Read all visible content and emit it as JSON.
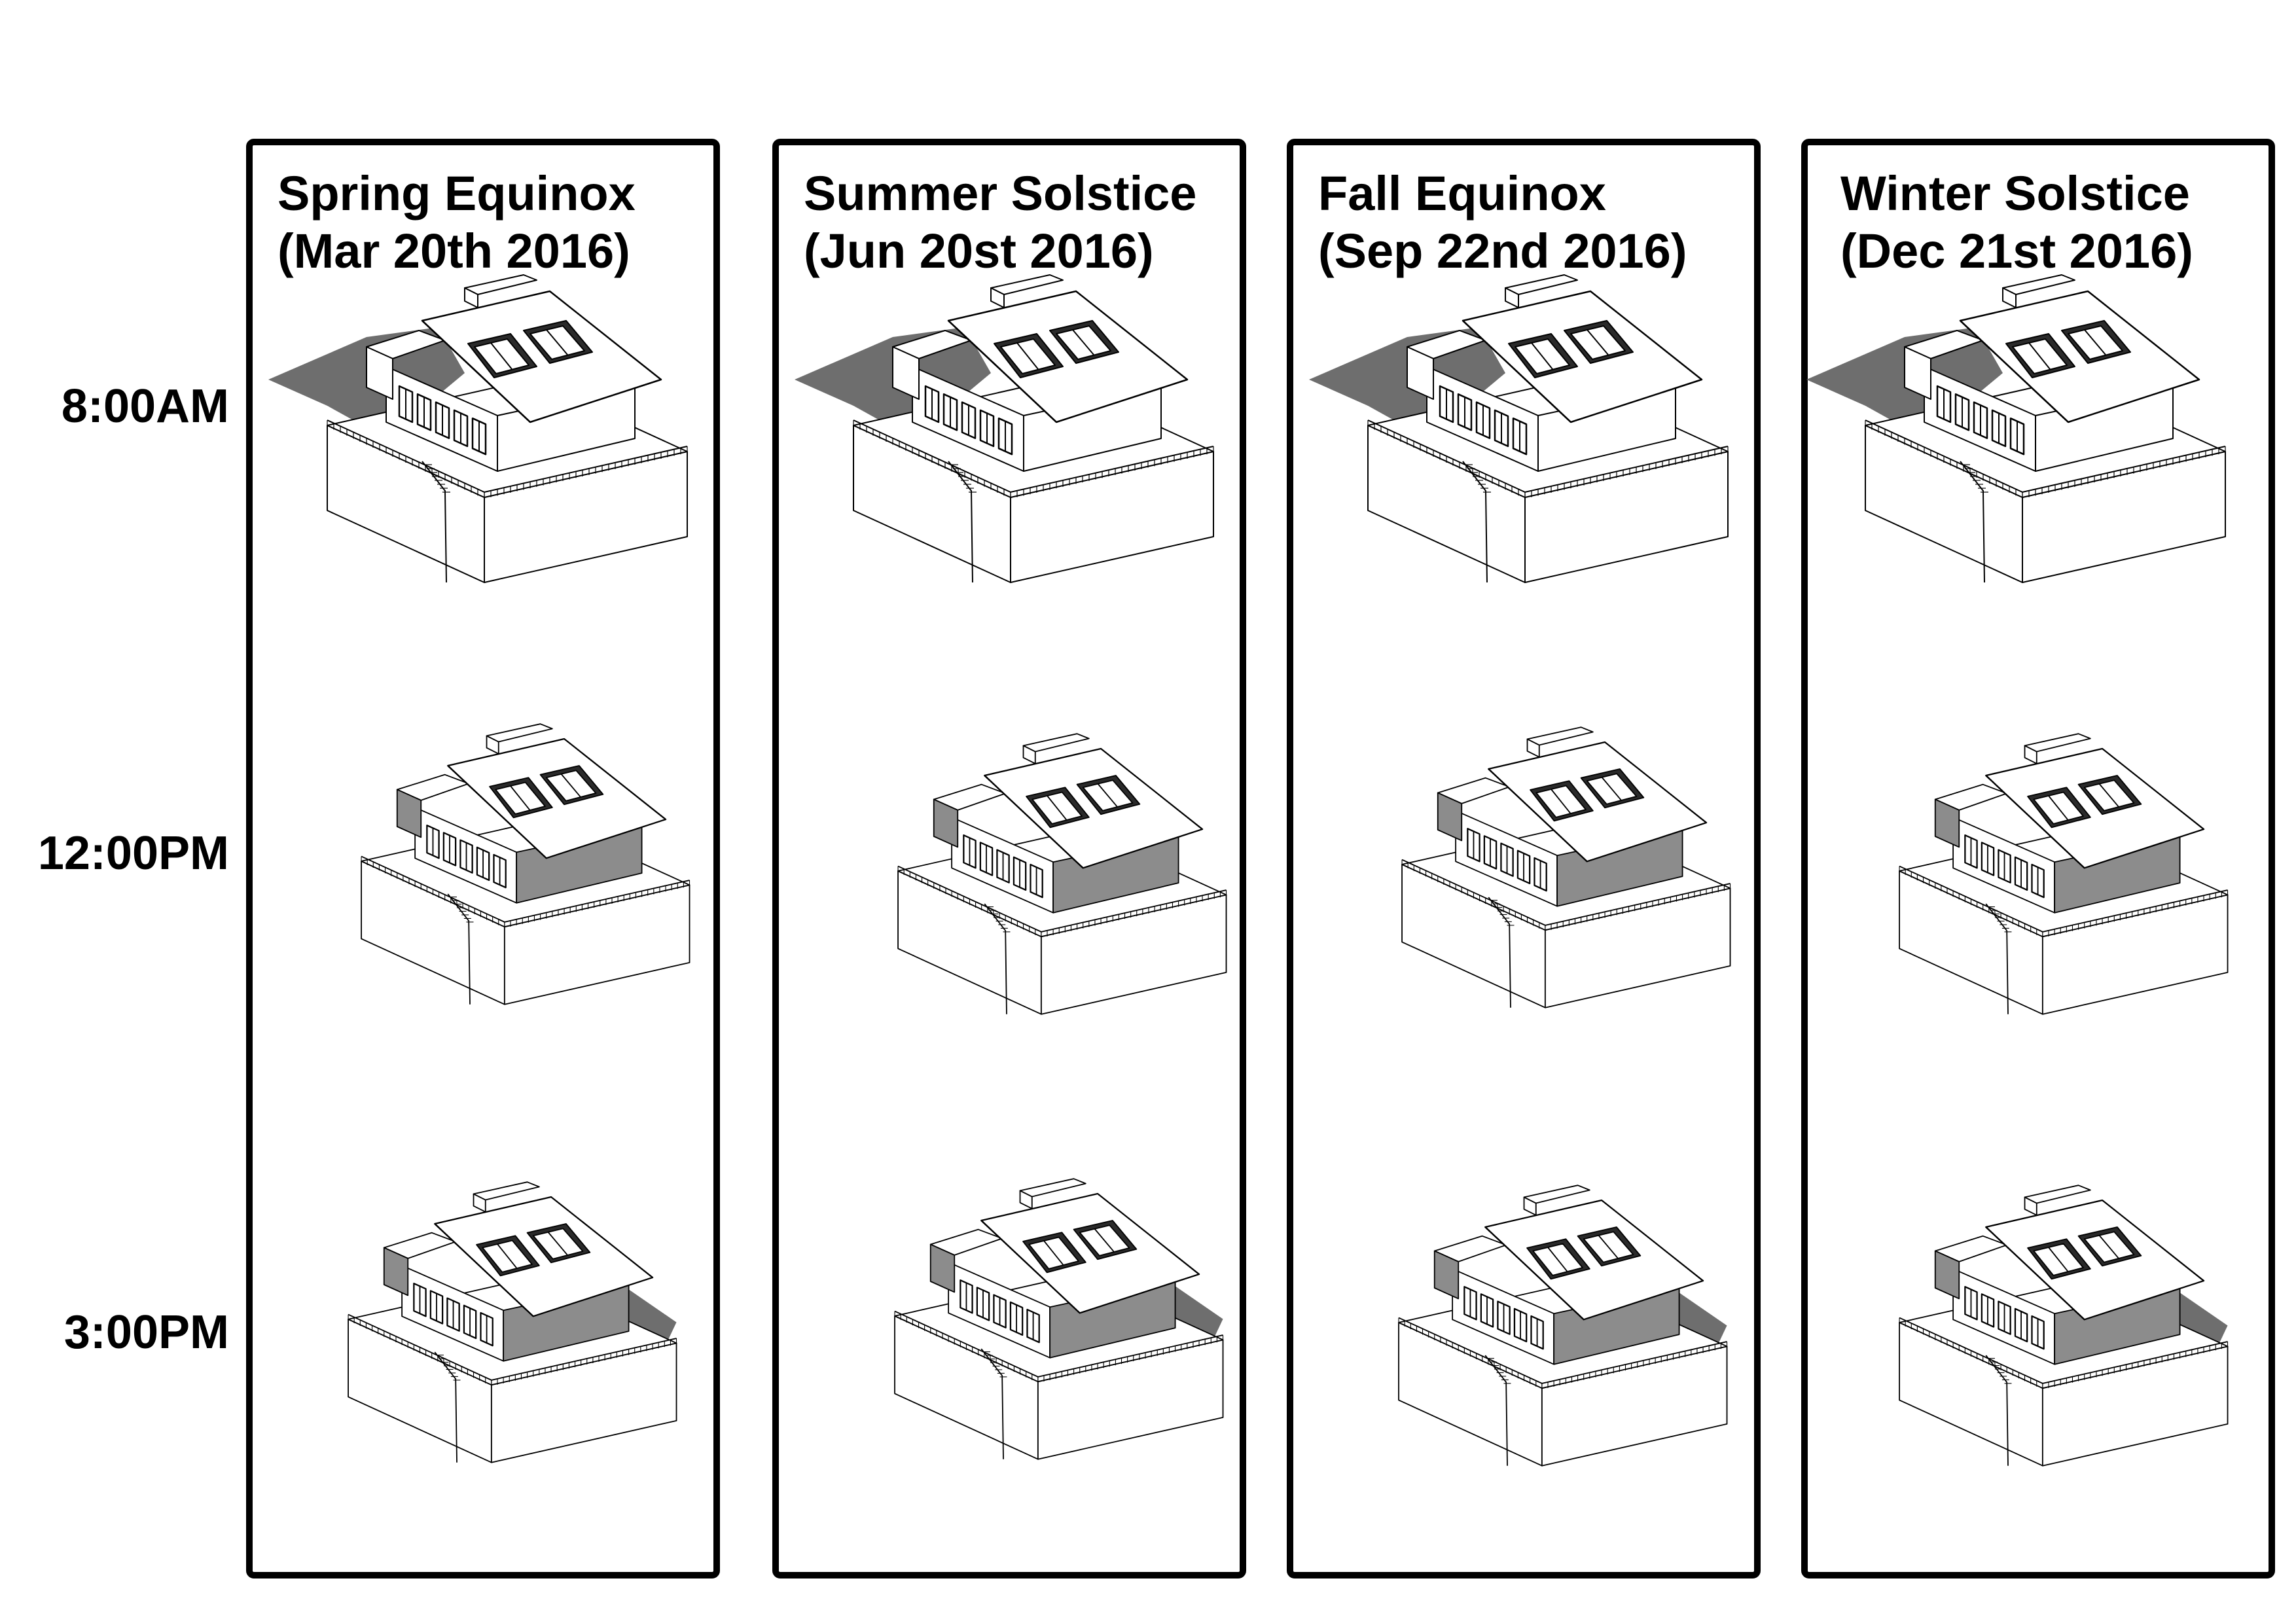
{
  "times": [
    "8:00AM",
    "12:00PM",
    "3:00PM"
  ],
  "seasons": [
    {
      "name": "Spring Equinox",
      "date": "(Mar 20th 2016)"
    },
    {
      "name": "Summer Solstice",
      "date": "(Jun 20st 2016)"
    },
    {
      "name": "Fall Equinox",
      "date": "(Sep 22nd 2016)"
    },
    {
      "name": "Winter Solstice",
      "date": "(Dec 21st 2016)"
    }
  ],
  "colors": {
    "ink": "#000000",
    "shadow": "#6e6e6e",
    "wall_shaded": "#8c8c8c",
    "paper": "#ffffff"
  }
}
